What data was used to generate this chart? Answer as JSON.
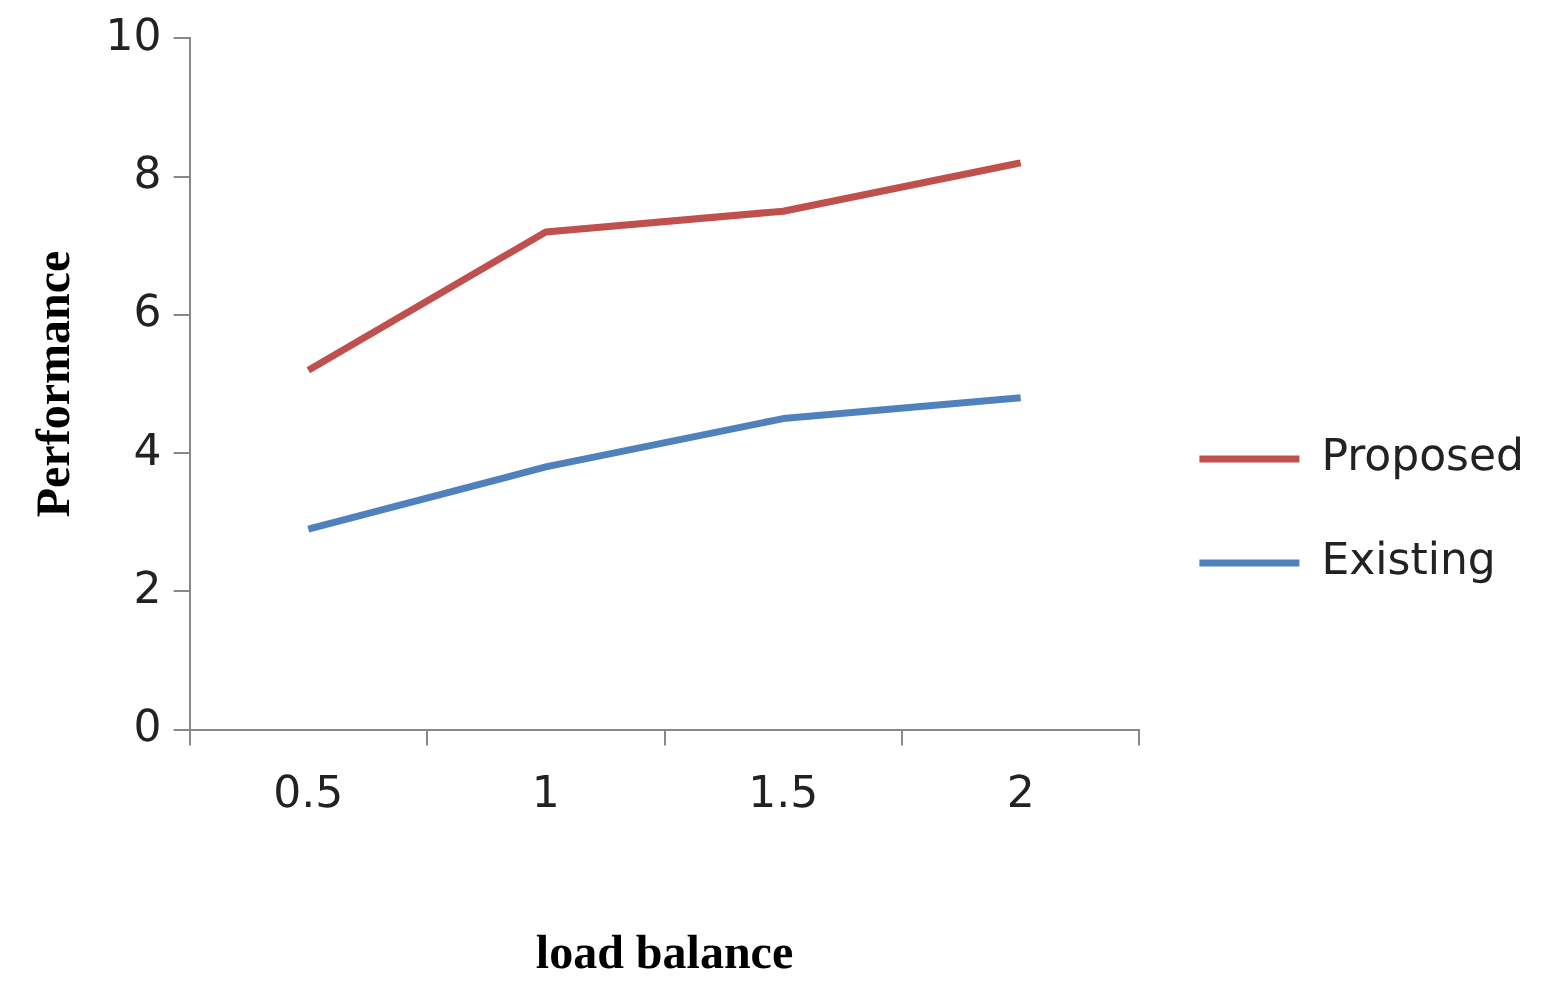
{
  "chart_data": {
    "type": "line",
    "xlabel": "load balance",
    "ylabel": "Performance",
    "categories": [
      "0.5",
      "1",
      "1.5",
      "2"
    ],
    "series": [
      {
        "name": "Proposed",
        "color": "#c0504d",
        "values": [
          5.2,
          7.2,
          7.5,
          8.2
        ]
      },
      {
        "name": "Existing",
        "color": "#4f81bd",
        "values": [
          2.9,
          3.8,
          4.5,
          4.8
        ]
      }
    ],
    "ylim": [
      0,
      10
    ],
    "yticks": [
      0,
      2,
      4,
      6,
      8,
      10
    ],
    "grid": false,
    "legend": "right",
    "marker": "none",
    "line_style": "solid"
  }
}
